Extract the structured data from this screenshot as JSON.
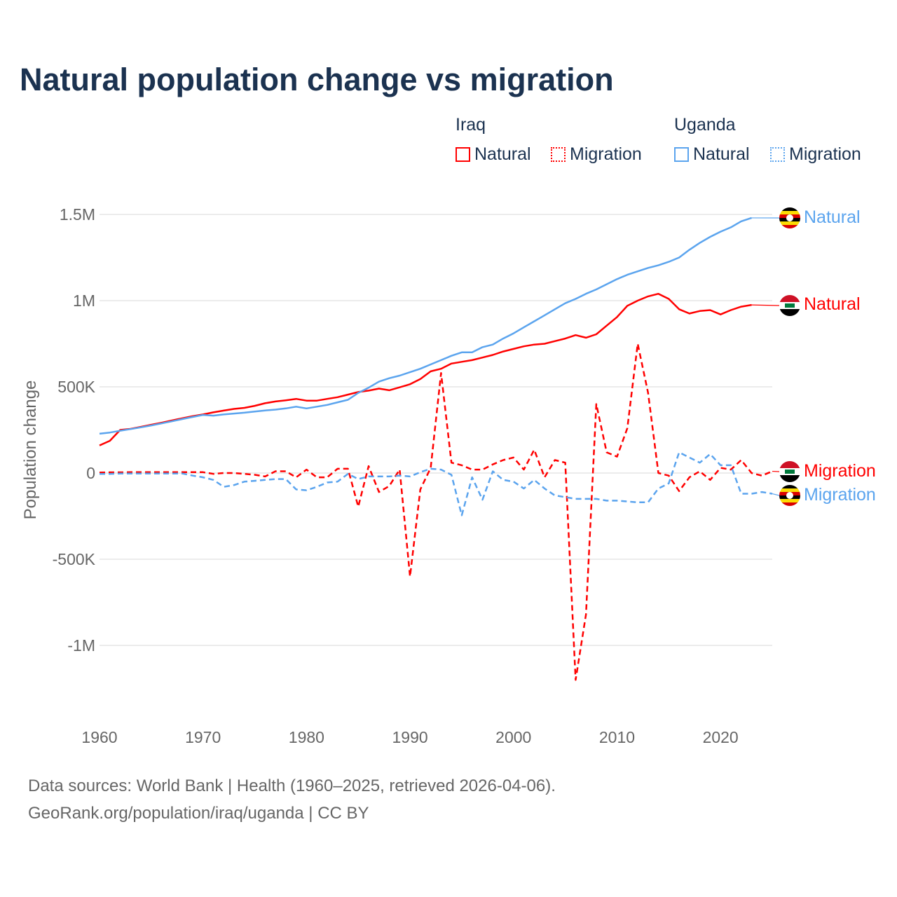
{
  "title": "Natural population change vs migration",
  "legend": {
    "groups": [
      {
        "name": "Iraq",
        "items": [
          "Natural",
          "Migration"
        ],
        "color": "#ff0000"
      },
      {
        "name": "Uganda",
        "items": [
          "Natural",
          "Migration"
        ],
        "color": "#5ba4ee"
      }
    ]
  },
  "sources": {
    "line1": "Data sources: World Bank | Health (1960–2025, retrieved 2026-04-06).",
    "line2": "GeoRank.org/population/iraq/uganda | CC BY"
  },
  "chart_data": {
    "type": "line",
    "title": "Natural population change vs migration",
    "xlabel": "",
    "ylabel": "Population change",
    "xlim": [
      1960,
      2025
    ],
    "ylim": [
      -1200000,
      1500000
    ],
    "x_ticks": [
      1960,
      1970,
      1980,
      1990,
      2000,
      2010,
      2020
    ],
    "x_tick_labels": [
      "1960",
      "1970",
      "1980",
      "1990",
      "2000",
      "2010",
      "2020"
    ],
    "y_ticks": [
      1500000,
      1000000,
      500000,
      0,
      -500000,
      -1000000
    ],
    "y_tick_labels": [
      "1.5M",
      "1M",
      "500K",
      "0",
      "-500K",
      "-1M"
    ],
    "grid": true,
    "legend_position": "top-right",
    "series": [
      {
        "name": "Iraq Natural",
        "label": "Natural",
        "color": "#ff0000",
        "dash": false,
        "start": 1960,
        "values": [
          160000,
          187000,
          250000,
          256000,
          268000,
          280000,
          292000,
          305000,
          318000,
          330000,
          340000,
          352000,
          362000,
          372000,
          378000,
          390000,
          405000,
          415000,
          422000,
          430000,
          420000,
          420000,
          430000,
          440000,
          455000,
          470000,
          478000,
          490000,
          480000,
          497000,
          515000,
          545000,
          590000,
          605000,
          635000,
          645000,
          655000,
          670000,
          685000,
          705000,
          720000,
          735000,
          745000,
          750000,
          765000,
          780000,
          800000,
          785000,
          805000,
          855000,
          905000,
          970000,
          1000000,
          1025000,
          1040000,
          1010000,
          950000,
          925000,
          940000,
          945000,
          920000,
          945000,
          965000,
          975000
        ]
      },
      {
        "name": "Uganda Natural",
        "label": "Natural",
        "color": "#5ba4ee",
        "dash": false,
        "start": 1960,
        "values": [
          228000,
          235000,
          245000,
          255000,
          265000,
          276000,
          288000,
          300000,
          313000,
          325000,
          337000,
          333000,
          340000,
          345000,
          350000,
          357000,
          363000,
          368000,
          375000,
          385000,
          375000,
          385000,
          395000,
          410000,
          425000,
          465000,
          495000,
          530000,
          550000,
          565000,
          585000,
          605000,
          630000,
          655000,
          680000,
          700000,
          700000,
          730000,
          745000,
          780000,
          810000,
          845000,
          880000,
          915000,
          950000,
          985000,
          1010000,
          1040000,
          1065000,
          1095000,
          1125000,
          1150000,
          1170000,
          1190000,
          1205000,
          1225000,
          1250000,
          1295000,
          1335000,
          1370000,
          1400000,
          1425000,
          1460000,
          1480000
        ]
      },
      {
        "name": "Iraq Migration",
        "label": "Migration",
        "color": "#ff0000",
        "dash": true,
        "start": 1960,
        "values": [
          3000,
          4000,
          4000,
          5000,
          5000,
          5000,
          5000,
          5000,
          5000,
          5000,
          5000,
          -5000,
          0,
          0,
          -5000,
          -10000,
          -20000,
          10000,
          10000,
          -25000,
          20000,
          -25000,
          -25000,
          25000,
          25000,
          -195000,
          40000,
          -110000,
          -75000,
          20000,
          -600000,
          -95000,
          30000,
          580000,
          60000,
          45000,
          20000,
          20000,
          50000,
          75000,
          90000,
          20000,
          135000,
          -25000,
          75000,
          60000,
          -1200000,
          -820000,
          400000,
          120000,
          95000,
          260000,
          750000,
          465000,
          0,
          -15000,
          -105000,
          -25000,
          10000,
          -40000,
          30000,
          20000,
          75000,
          0,
          -15000,
          10000
        ]
      },
      {
        "name": "Uganda Migration",
        "label": "Migration",
        "color": "#5ba4ee",
        "dash": true,
        "start": 1960,
        "values": [
          -5000,
          -5000,
          -3000,
          -3000,
          -3000,
          -3000,
          -3000,
          -3000,
          -3000,
          -15000,
          -25000,
          -40000,
          -80000,
          -70000,
          -50000,
          -45000,
          -40000,
          -35000,
          -35000,
          -95000,
          -100000,
          -80000,
          -55000,
          -50000,
          -5000,
          -35000,
          -20000,
          -20000,
          -20000,
          -15000,
          -20000,
          5000,
          25000,
          20000,
          -10000,
          -245000,
          -25000,
          -155000,
          10000,
          -40000,
          -50000,
          -90000,
          -40000,
          -90000,
          -130000,
          -140000,
          -150000,
          -150000,
          -150000,
          -160000,
          -160000,
          -165000,
          -170000,
          -170000,
          -90000,
          -60000,
          120000,
          90000,
          60000,
          110000,
          45000,
          45000,
          -120000,
          -120000,
          -110000,
          -120000
        ]
      }
    ]
  }
}
